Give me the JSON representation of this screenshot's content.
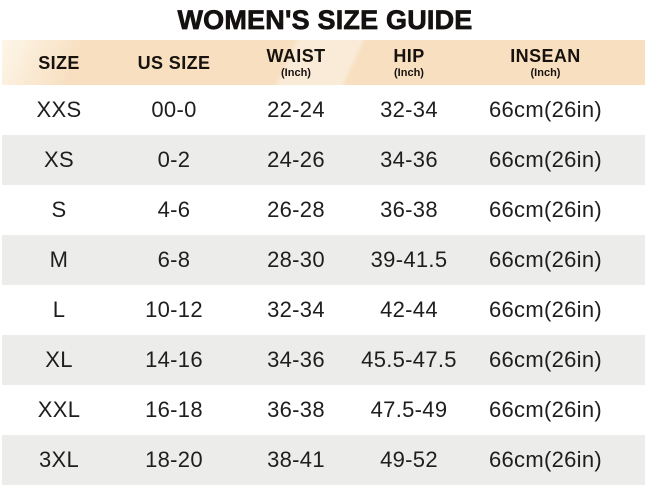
{
  "title": "WOMEN'S SIZE GUIDE",
  "colors": {
    "header_bg": "#f7dfc0",
    "header_bg_highlight": "#fdf2e0",
    "row_bg": "#ffffff",
    "row_alt_bg": "#ececea",
    "text": "#1e1e1e",
    "title_text": "#141110"
  },
  "chart_data": {
    "type": "table",
    "title": "WOMEN'S SIZE GUIDE",
    "columns": [
      {
        "label": "SIZE"
      },
      {
        "label": "US SIZE"
      },
      {
        "label": "WAIST",
        "unit": "(Inch)"
      },
      {
        "label": "HIP",
        "unit": "(Inch)"
      },
      {
        "label": "INSEAN",
        "unit": "(Inch)"
      }
    ],
    "rows": [
      [
        "XXS",
        "00-0",
        "22-24",
        "32-34",
        "66cm(26in)"
      ],
      [
        "XS",
        "0-2",
        "24-26",
        "34-36",
        "66cm(26in)"
      ],
      [
        "S",
        "4-6",
        "26-28",
        "36-38",
        "66cm(26in)"
      ],
      [
        "M",
        "6-8",
        "28-30",
        "39-41.5",
        "66cm(26in)"
      ],
      [
        "L",
        "10-12",
        "32-34",
        "42-44",
        "66cm(26in)"
      ],
      [
        "XL",
        "14-16",
        "34-36",
        "45.5-47.5",
        "66cm(26in)"
      ],
      [
        "XXL",
        "16-18",
        "36-38",
        "47.5-49",
        "66cm(26in)"
      ],
      [
        "3XL",
        "18-20",
        "38-41",
        "49-52",
        "66cm(26in)"
      ]
    ]
  }
}
